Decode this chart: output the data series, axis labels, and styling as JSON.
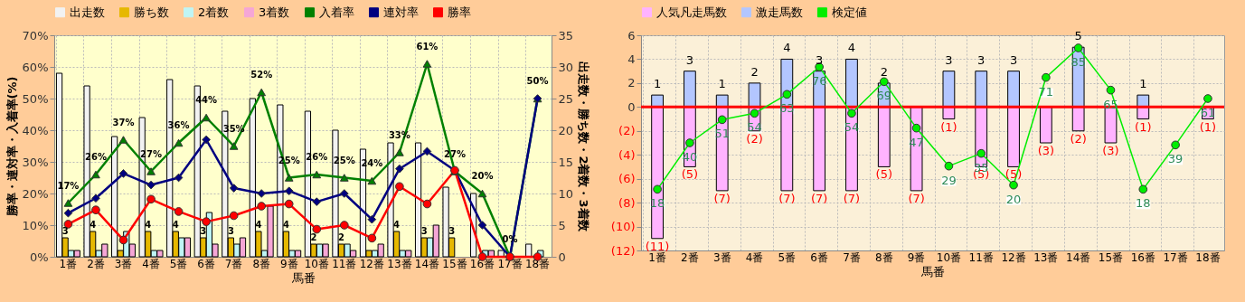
{
  "chart_data": [
    {
      "type": "bar",
      "xlabel": "馬番",
      "ylabel": "勝率・連対率・入着率(%)",
      "y2label": "出走数・勝ち数・2着数・3着数",
      "categories": [
        "1番",
        "2番",
        "3番",
        "4番",
        "5番",
        "6番",
        "7番",
        "8番",
        "9番",
        "10番",
        "11番",
        "12番",
        "13番",
        "14番",
        "15番",
        "16番",
        "17番",
        "18番"
      ],
      "series": [
        {
          "name": "出走数",
          "axis": "y2",
          "color": "#f2f2f2",
          "values": [
            29,
            27,
            19,
            22,
            28,
            27,
            23,
            25,
            24,
            23,
            20,
            17,
            18,
            18,
            11,
            10,
            1,
            2
          ]
        },
        {
          "name": "勝ち数",
          "axis": "y2",
          "color": "#e6b800",
          "values": [
            3,
            4,
            1,
            4,
            4,
            3,
            3,
            4,
            4,
            2,
            2,
            1,
            4,
            3,
            3,
            0,
            0,
            0
          ],
          "value_labels": [
            "3",
            "4",
            null,
            "4",
            "4",
            "3",
            "3",
            "4",
            "4",
            "2",
            "2",
            null,
            "4",
            "3",
            "3",
            null,
            null,
            null
          ]
        },
        {
          "name": "2着数",
          "axis": "y2",
          "color": "#bff5f5",
          "values": [
            1,
            1,
            4,
            1,
            3,
            7,
            2,
            1,
            1,
            2,
            2,
            1,
            1,
            3,
            0,
            1,
            0,
            1
          ]
        },
        {
          "name": "3着数",
          "axis": "y2",
          "color": "#f5a6d6",
          "values": [
            1,
            2,
            2,
            1,
            3,
            2,
            3,
            8,
            1,
            2,
            1,
            2,
            1,
            5,
            0,
            1,
            0,
            0
          ]
        },
        {
          "name": "入着率",
          "type": "line",
          "axis": "y",
          "color": "#008000",
          "marker": "triangle",
          "values": [
            17,
            26,
            37,
            27,
            36,
            44,
            35,
            52,
            25,
            26,
            25,
            24,
            33,
            61,
            27,
            20,
            0,
            50
          ],
          "value_labels": [
            "17%",
            "26%",
            "37%",
            "27%",
            "36%",
            "44%",
            "35%",
            "52%",
            "25%",
            "26%",
            "25%",
            "24%",
            "33%",
            "61%",
            "27%",
            "20%",
            "0%",
            "50%"
          ]
        },
        {
          "name": "連対率",
          "type": "line",
          "axis": "y",
          "color": "#000080",
          "marker": "diamond",
          "values": [
            13.8,
            18.5,
            26.3,
            22.7,
            25.0,
            37.0,
            21.7,
            20.0,
            20.8,
            17.4,
            20.0,
            11.8,
            27.8,
            33.3,
            27.3,
            10.0,
            0,
            50.0
          ]
        },
        {
          "name": "勝率",
          "type": "line",
          "axis": "y",
          "color": "#ff0000",
          "marker": "circle",
          "values": [
            10.3,
            14.8,
            5.3,
            18.2,
            14.3,
            11.1,
            13.0,
            16.0,
            16.7,
            8.7,
            10.0,
            5.9,
            22.2,
            16.7,
            27.3,
            0,
            0,
            0
          ]
        }
      ],
      "ylim": [
        0,
        70
      ],
      "yticks": [
        {
          "value": 0,
          "label": "0%"
        },
        {
          "value": 10,
          "label": "10%"
        },
        {
          "value": 20,
          "label": "20%"
        },
        {
          "value": 30,
          "label": "30%"
        },
        {
          "value": 40,
          "label": "40%"
        },
        {
          "value": 50,
          "label": "50%"
        },
        {
          "value": 60,
          "label": "60%"
        },
        {
          "value": 70,
          "label": "70%"
        }
      ],
      "y2lim": [
        0,
        35
      ],
      "y2ticks": [
        0,
        5,
        10,
        15,
        20,
        25,
        30,
        35
      ],
      "grid": true,
      "legend": "top"
    },
    {
      "type": "bar",
      "xlabel": "馬番",
      "stacked": true,
      "categories": [
        "1番",
        "2番",
        "3番",
        "4番",
        "5番",
        "6番",
        "7番",
        "8番",
        "9番",
        "10番",
        "11番",
        "12番",
        "13番",
        "14番",
        "15番",
        "16番",
        "17番",
        "18番"
      ],
      "series": [
        {
          "name": "人気凡走馬数",
          "axis": "y",
          "color": "#ffb3ff",
          "values": [
            -11,
            -5,
            -7,
            -2,
            -7,
            -7,
            -7,
            -5,
            -7,
            -1,
            -5,
            -5,
            -3,
            -2,
            -3,
            -1,
            null,
            -1
          ],
          "value_labels": [
            "(11)",
            "(5)",
            "(7)",
            "(2)",
            "(7)",
            "(7)",
            "(7)",
            "(5)",
            "(7)",
            "(1)",
            "(5)",
            "(5)",
            "(3)",
            "(2)",
            "(3)",
            "(1)",
            null,
            "(1)"
          ]
        },
        {
          "name": "激走馬数",
          "axis": "y",
          "color": "#b3c6ff",
          "values": [
            1,
            3,
            1,
            2,
            4,
            3,
            4,
            2,
            null,
            3,
            3,
            3,
            null,
            5,
            null,
            1,
            null,
            null
          ],
          "value_labels": [
            "1",
            "3",
            "1",
            "2",
            "4",
            "3",
            "4",
            "2",
            null,
            "3",
            "3",
            "3",
            null,
            "5",
            null,
            "1",
            null,
            null
          ]
        },
        {
          "name": "検定値",
          "type": "line",
          "axis": "y2",
          "color": "#00ee00",
          "marker": "circle",
          "values": [
            18,
            40,
            51,
            54,
            63,
            76,
            54,
            69,
            47,
            29,
            35,
            20,
            71,
            85,
            65,
            18,
            39,
            61
          ],
          "value_labels": [
            "18",
            "40",
            "51",
            "54",
            "63",
            "76",
            "54",
            "69",
            "47",
            "29",
            "35",
            "20",
            "71",
            "85",
            "65",
            "18",
            "39",
            "61"
          ]
        }
      ],
      "ylim": [
        -12,
        6
      ],
      "yticks": [
        {
          "value": -12,
          "label": "(12)"
        },
        {
          "value": -10,
          "label": "(10)"
        },
        {
          "value": -8,
          "label": "(8)"
        },
        {
          "value": -6,
          "label": "(6)"
        },
        {
          "value": -4,
          "label": "(4)"
        },
        {
          "value": -2,
          "label": "(2)"
        },
        0,
        2,
        4,
        6
      ],
      "y2lim": [
        -11,
        91
      ],
      "ref_lines": [
        {
          "axis": "y",
          "value": 0,
          "color": "#ff0000"
        }
      ],
      "grid": true,
      "legend": "top"
    }
  ]
}
